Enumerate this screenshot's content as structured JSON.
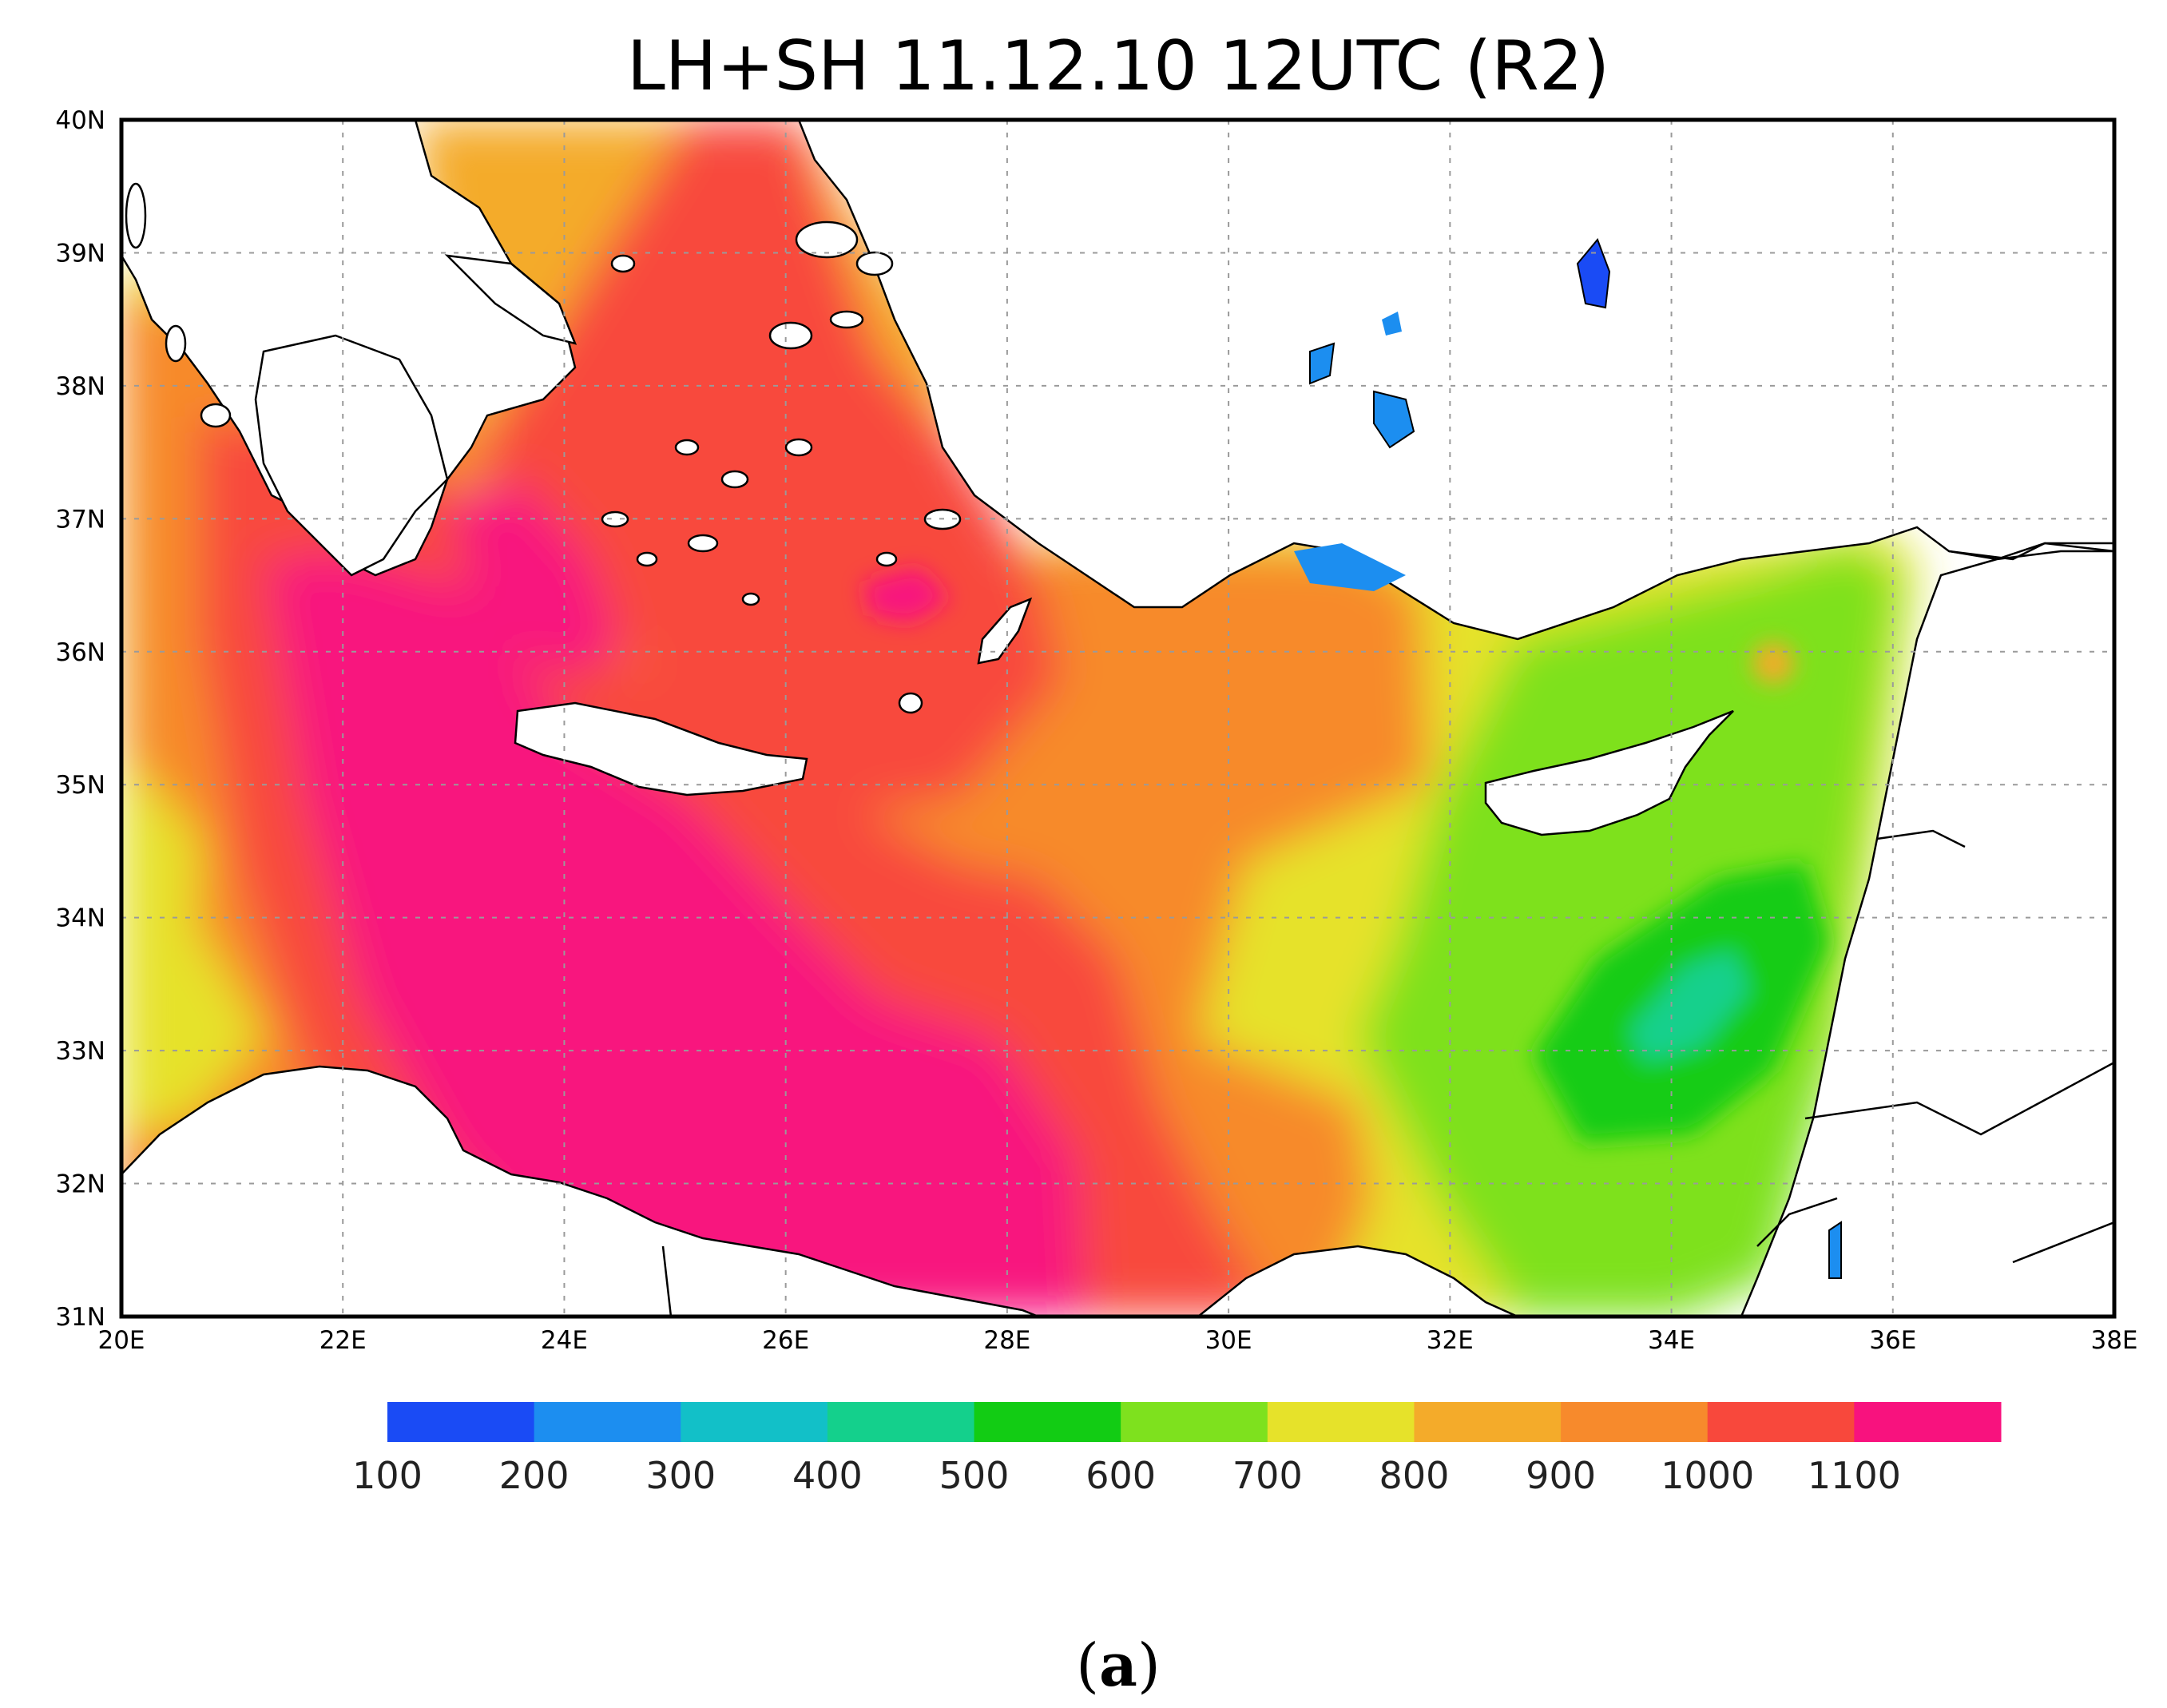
{
  "title": "LH+SH 11.12.10 12UTC (R2)",
  "caption": "(a)",
  "map": {
    "lon_range": [
      20,
      38
    ],
    "lat_range": [
      31,
      40
    ],
    "grid": true,
    "lon_ticks": [
      "20E",
      "22E",
      "24E",
      "26E",
      "28E",
      "30E",
      "32E",
      "34E",
      "36E",
      "38E"
    ],
    "lat_ticks": [
      "40N",
      "39N",
      "38N",
      "37N",
      "36N",
      "35N",
      "34N",
      "33N",
      "32N",
      "31N"
    ]
  },
  "colorbar": {
    "labels": [
      "100",
      "200",
      "300",
      "400",
      "500",
      "600",
      "700",
      "800",
      "900",
      "1000",
      "1100"
    ],
    "colors": [
      "#1a4bf5",
      "#1c8ef0",
      "#12c0c8",
      "#14d08c",
      "#12cc14",
      "#7ee11e",
      "#e6e22a",
      "#f4ab2a",
      "#f78a2c",
      "#f8483c",
      "#f8127e"
    ]
  }
}
